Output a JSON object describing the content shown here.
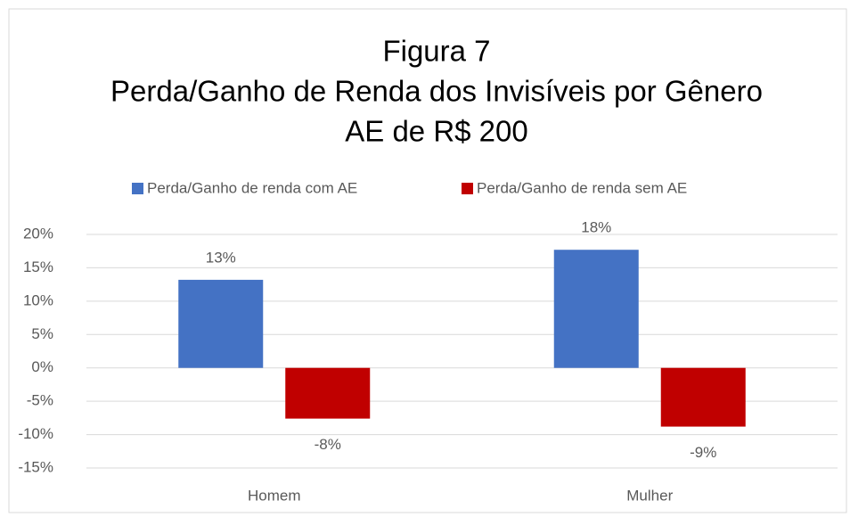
{
  "chart_data": {
    "type": "bar",
    "title": [
      "Figura 7",
      "Perda/Ganho de Renda dos Invisíveis por Gênero",
      "AE de R$ 200"
    ],
    "categories": [
      "Homem",
      "Mulher"
    ],
    "series": [
      {
        "name": "Perda/Ganho de renda com AE",
        "color": "#4472c4",
        "values": [
          13.2,
          17.7
        ],
        "value_labels": [
          "13%",
          "18%"
        ]
      },
      {
        "name": "Perda/Ganho de renda sem AE",
        "color": "#c00000",
        "values": [
          -7.6,
          -8.8
        ],
        "value_labels": [
          "-8%",
          "-9%"
        ]
      }
    ],
    "ylim": [
      -15,
      20
    ],
    "yticks": [
      {
        "value": -15,
        "label": "-15%"
      },
      {
        "value": -10,
        "label": "-10%"
      },
      {
        "value": -5,
        "label": "-5%"
      },
      {
        "value": 0,
        "label": "0%"
      },
      {
        "value": 5,
        "label": "5%"
      },
      {
        "value": 10,
        "label": "10%"
      },
      {
        "value": 15,
        "label": "15%"
      },
      {
        "value": 20,
        "label": "20%"
      }
    ],
    "grid": true,
    "legend": "top"
  }
}
